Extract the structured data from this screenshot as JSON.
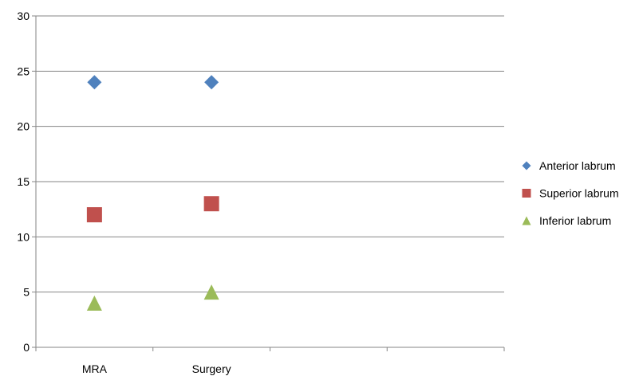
{
  "chart_data": {
    "type": "scatter",
    "categories": [
      "MRA",
      "Surgery"
    ],
    "x_slots": 4,
    "ylim": [
      0,
      30
    ],
    "yticks": [
      0,
      5,
      10,
      15,
      20,
      25,
      30
    ],
    "grid": true,
    "legend_position": "right",
    "series": [
      {
        "name": "Anterior labrum",
        "marker": "diamond",
        "color": "#4F81BD",
        "values": [
          24,
          24
        ]
      },
      {
        "name": "Superior labrum",
        "marker": "square",
        "color": "#C0504D",
        "values": [
          12,
          13
        ]
      },
      {
        "name": "Inferior labrum",
        "marker": "triangle",
        "color": "#9BBB59",
        "values": [
          4,
          5
        ]
      }
    ]
  }
}
